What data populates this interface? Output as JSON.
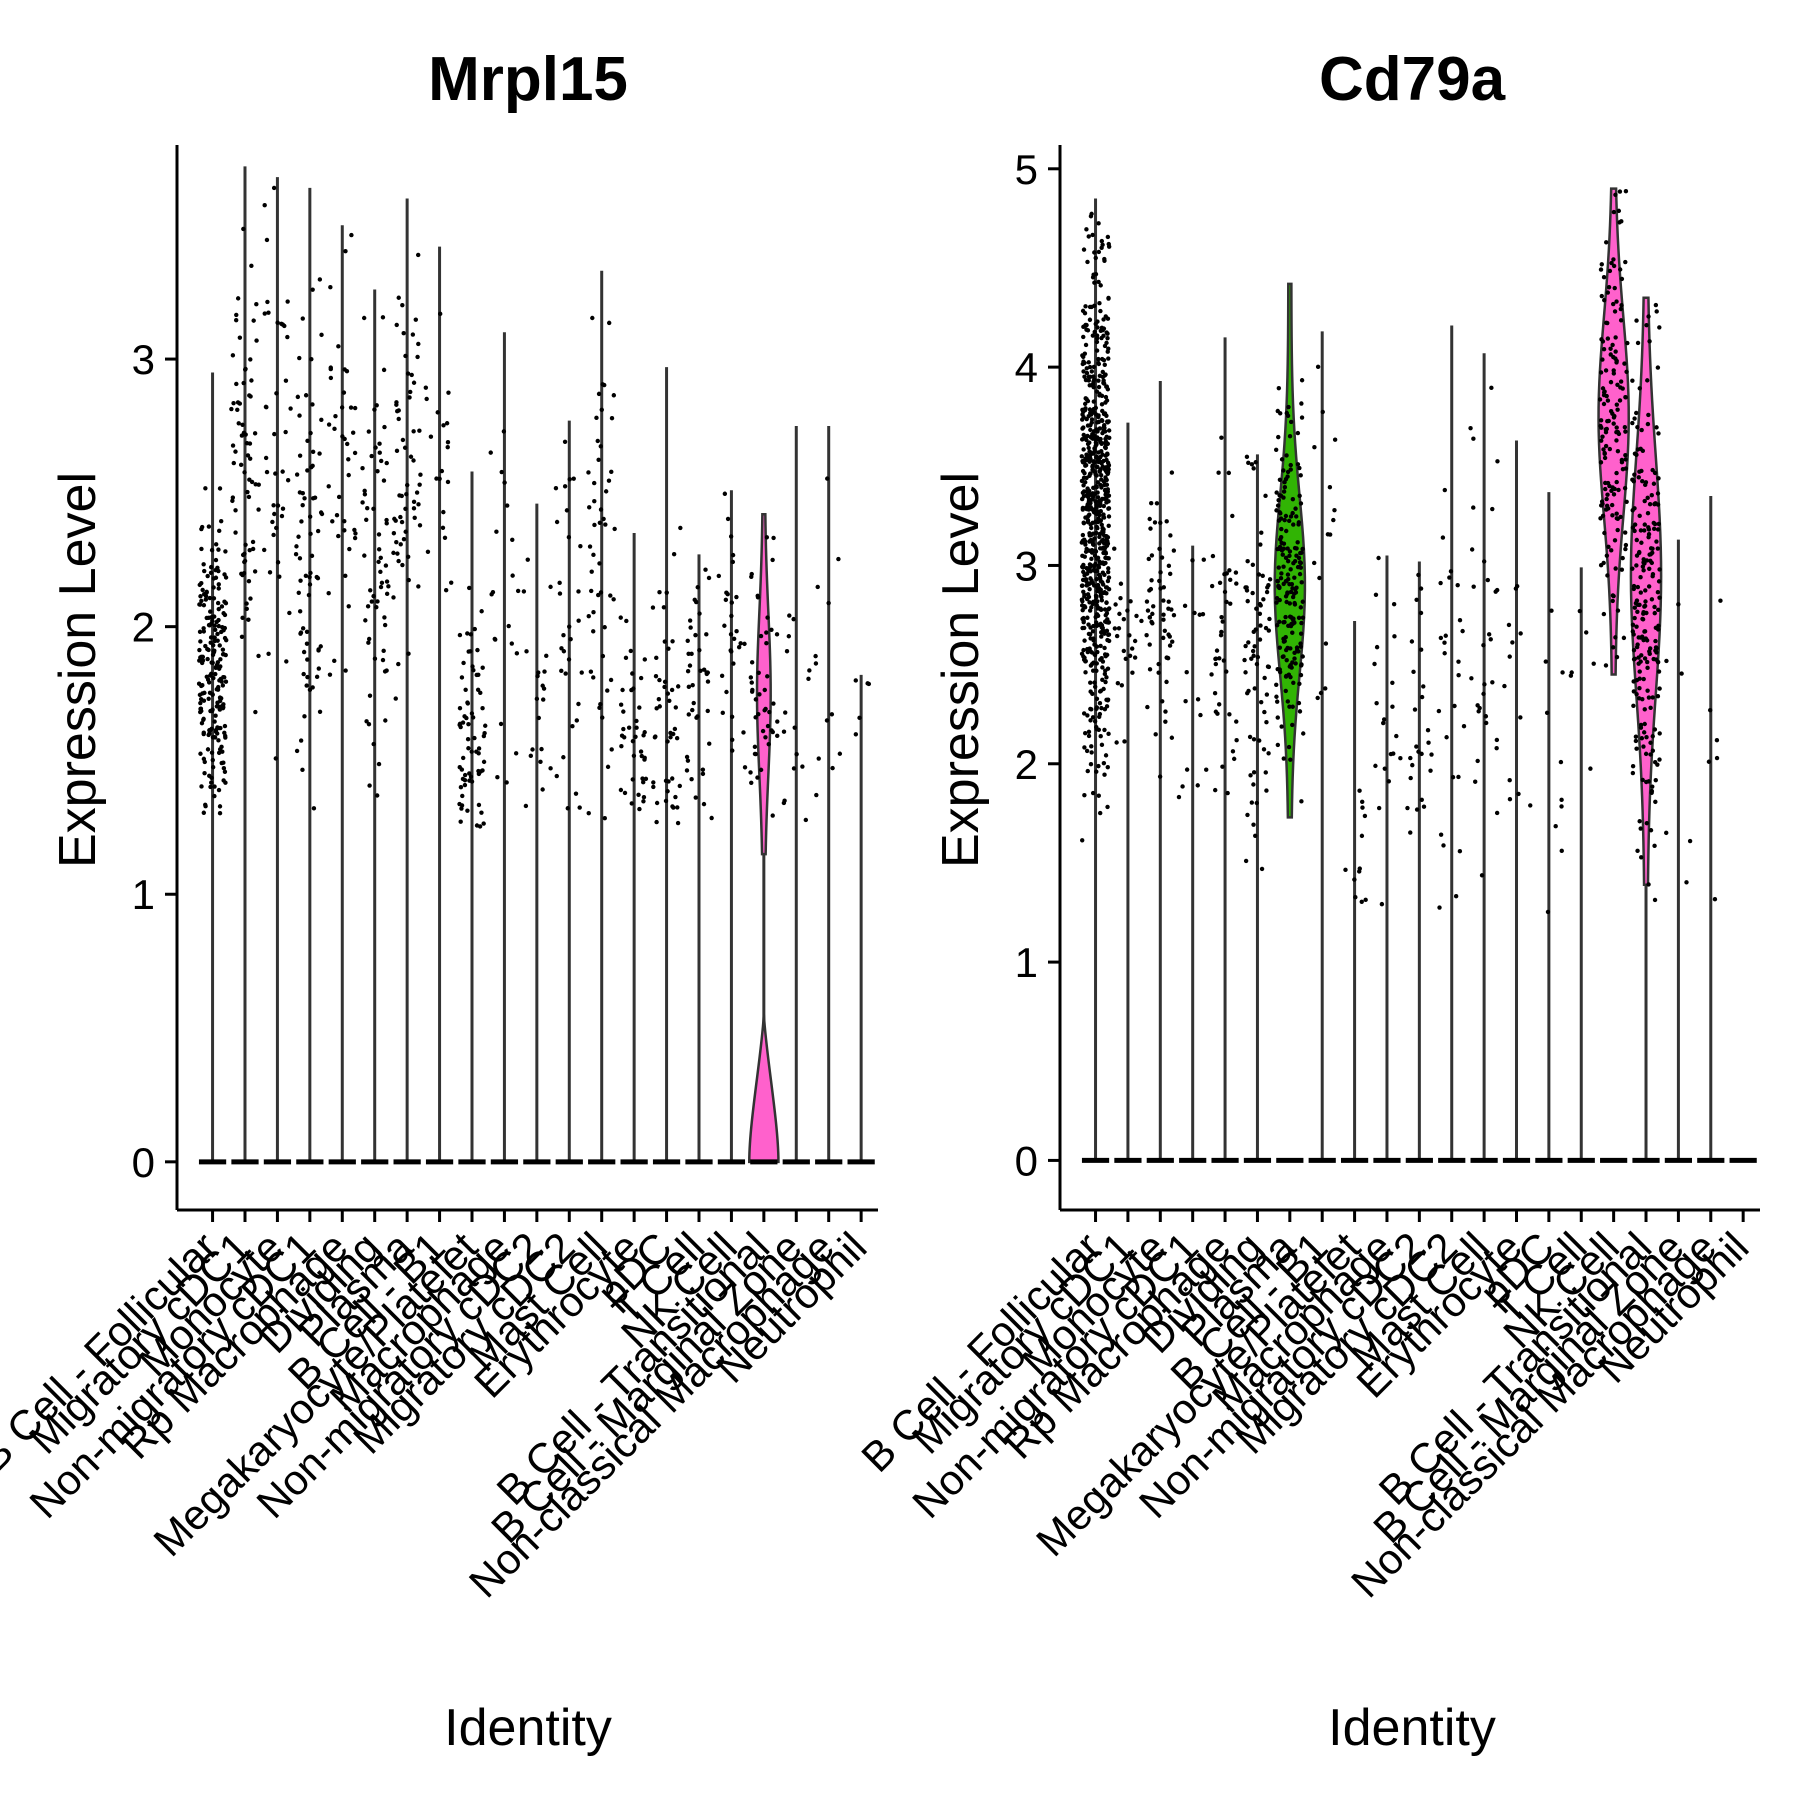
{
  "chart_data": [
    {
      "type": "violin",
      "title": "Mrpl15",
      "xlabel": "Identity",
      "ylabel": "Expression Level",
      "ylim": [
        -0.18,
        3.8
      ],
      "yticks": [
        0,
        1,
        2,
        3
      ],
      "categories": [
        "B Cell - Follicular",
        "Migratory cDC1",
        "Monocyte",
        "Non-migratory cDC1",
        "Rp Macrophage",
        "Dividing",
        "Plasma",
        "B Cell - B1",
        "Megakaryocyte/Platelet",
        "Macrophage",
        "Non-migratory cDC2",
        "Migratory cDC2",
        "Mast Cell",
        "Erythrocyte",
        "pDC",
        "T Cell",
        "NK Cell",
        "B Cell - Transitional",
        "B Cell - Marginal Zone",
        "Non-classical Macrophage",
        "Neutrophil"
      ],
      "series": [
        {
          "category": "B Cell - Follicular",
          "max": 2.95,
          "n_points": 220,
          "nonzero_center": 1.85,
          "nonzero_spread": 0.28,
          "fill": "#000000"
        },
        {
          "category": "Migratory cDC1",
          "max": 3.72,
          "n_points": 70,
          "nonzero_center": 2.6,
          "nonzero_spread": 0.4,
          "fill": "#000000"
        },
        {
          "category": "Monocyte",
          "max": 3.68,
          "n_points": 40,
          "nonzero_center": 2.6,
          "nonzero_spread": 0.45,
          "fill": "#000000"
        },
        {
          "category": "Non-migratory cDC1",
          "max": 3.64,
          "n_points": 70,
          "nonzero_center": 2.3,
          "nonzero_spread": 0.45,
          "fill": "#000000"
        },
        {
          "category": "Rp Macrophage",
          "max": 3.5,
          "n_points": 40,
          "nonzero_center": 2.6,
          "nonzero_spread": 0.4,
          "fill": "#000000"
        },
        {
          "category": "Dividing",
          "max": 3.26,
          "n_points": 60,
          "nonzero_center": 2.3,
          "nonzero_spread": 0.5,
          "fill": "#000000"
        },
        {
          "category": "Plasma",
          "max": 3.6,
          "n_points": 60,
          "nonzero_center": 2.65,
          "nonzero_spread": 0.35,
          "fill": "#000000"
        },
        {
          "category": "B Cell - B1",
          "max": 3.42,
          "n_points": 20,
          "nonzero_center": 2.6,
          "nonzero_spread": 0.35,
          "fill": "#000000"
        },
        {
          "category": "Megakaryocyte/Platelet",
          "max": 2.58,
          "n_points": 70,
          "nonzero_center": 1.6,
          "nonzero_spread": 0.25,
          "fill": "#000000"
        },
        {
          "category": "Macrophage",
          "max": 3.1,
          "n_points": 20,
          "nonzero_center": 2.2,
          "nonzero_spread": 0.45,
          "fill": "#000000"
        },
        {
          "category": "Non-migratory cDC2",
          "max": 2.46,
          "n_points": 20,
          "nonzero_center": 1.7,
          "nonzero_spread": 0.3,
          "fill": "#000000"
        },
        {
          "category": "Migratory cDC2",
          "max": 2.77,
          "n_points": 30,
          "nonzero_center": 2.0,
          "nonzero_spread": 0.4,
          "fill": "#000000"
        },
        {
          "category": "Mast Cell",
          "max": 3.33,
          "n_points": 50,
          "nonzero_center": 2.2,
          "nonzero_spread": 0.45,
          "fill": "#000000"
        },
        {
          "category": "Erythrocyte",
          "max": 2.35,
          "n_points": 40,
          "nonzero_center": 1.55,
          "nonzero_spread": 0.25,
          "fill": "#000000"
        },
        {
          "category": "pDC",
          "max": 2.97,
          "n_points": 45,
          "nonzero_center": 1.65,
          "nonzero_spread": 0.3,
          "fill": "#000000"
        },
        {
          "category": "T Cell",
          "max": 2.27,
          "n_points": 40,
          "nonzero_center": 1.75,
          "nonzero_spread": 0.25,
          "fill": "#000000"
        },
        {
          "category": "NK Cell",
          "max": 2.51,
          "n_points": 30,
          "nonzero_center": 1.95,
          "nonzero_spread": 0.3,
          "fill": "#000000"
        },
        {
          "category": "B Cell - Transitional",
          "max": 2.42,
          "n_points": 45,
          "nonzero_center": 1.75,
          "nonzero_spread": 0.3,
          "fill": "#ff61cc"
        },
        {
          "category": "B Cell - Marginal Zone",
          "max": 2.75,
          "n_points": 15,
          "nonzero_center": 1.7,
          "nonzero_spread": 0.25,
          "fill": "#000000"
        },
        {
          "category": "Non-classical Macrophage",
          "max": 2.75,
          "n_points": 12,
          "nonzero_center": 1.9,
          "nonzero_spread": 0.35,
          "fill": "#000000"
        },
        {
          "category": "Neutrophil",
          "max": 1.82,
          "n_points": 5,
          "nonzero_center": 1.7,
          "nonzero_spread": 0.1,
          "fill": "#000000"
        }
      ]
    },
    {
      "type": "violin",
      "title": "Cd79a",
      "xlabel": "Identity",
      "ylabel": "Expression Level",
      "ylim": [
        -0.25,
        5.12
      ],
      "yticks": [
        0,
        1,
        2,
        3,
        4,
        5
      ],
      "categories": [
        "B Cell - Follicular",
        "Migratory cDC1",
        "Monocyte",
        "Non-migratory cDC1",
        "Rp Macrophage",
        "Dividing",
        "Plasma",
        "B Cell - B1",
        "Megakaryocyte/Platelet",
        "Macrophage",
        "Non-migratory cDC2",
        "Migratory cDC2",
        "Mast Cell",
        "Erythrocyte",
        "pDC",
        "T Cell",
        "NK Cell",
        "B Cell - Transitional",
        "B Cell - Marginal Zone",
        "Non-classical Macrophage",
        "Neutrophil"
      ],
      "series": [
        {
          "category": "B Cell - Follicular",
          "max": 4.85,
          "n_points": 700,
          "nonzero_center": 3.3,
          "nonzero_spread": 0.6,
          "fill": "#000000"
        },
        {
          "category": "Migratory cDC1",
          "max": 3.72,
          "n_points": 25,
          "nonzero_center": 2.7,
          "nonzero_spread": 0.3,
          "fill": "#000000"
        },
        {
          "category": "Monocyte",
          "max": 3.93,
          "n_points": 60,
          "nonzero_center": 2.7,
          "nonzero_spread": 0.4,
          "fill": "#000000"
        },
        {
          "category": "Non-migratory cDC1",
          "max": 3.1,
          "n_points": 15,
          "nonzero_center": 2.3,
          "nonzero_spread": 0.4,
          "fill": "#000000"
        },
        {
          "category": "Rp Macrophage",
          "max": 4.15,
          "n_points": 40,
          "nonzero_center": 2.7,
          "nonzero_spread": 0.4,
          "fill": "#000000"
        },
        {
          "category": "Dividing",
          "max": 3.56,
          "n_points": 70,
          "nonzero_center": 2.5,
          "nonzero_spread": 0.5,
          "fill": "#000000"
        },
        {
          "category": "Plasma",
          "max": 4.42,
          "n_points": 200,
          "nonzero_center": 2.9,
          "nonzero_spread": 0.45,
          "fill": "#31b404"
        },
        {
          "category": "B Cell - B1",
          "max": 4.18,
          "n_points": 15,
          "nonzero_center": 3.0,
          "nonzero_spread": 0.4,
          "fill": "#000000"
        },
        {
          "category": "Megakaryocyte/Platelet",
          "max": 2.72,
          "n_points": 12,
          "nonzero_center": 1.6,
          "nonzero_spread": 0.25,
          "fill": "#000000"
        },
        {
          "category": "Macrophage",
          "max": 3.05,
          "n_points": 20,
          "nonzero_center": 2.3,
          "nonzero_spread": 0.5,
          "fill": "#000000"
        },
        {
          "category": "Non-migratory cDC2",
          "max": 3.02,
          "n_points": 25,
          "nonzero_center": 2.1,
          "nonzero_spread": 0.5,
          "fill": "#000000"
        },
        {
          "category": "Migratory cDC2",
          "max": 4.21,
          "n_points": 25,
          "nonzero_center": 2.3,
          "nonzero_spread": 0.6,
          "fill": "#000000"
        },
        {
          "category": "Mast Cell",
          "max": 4.07,
          "n_points": 30,
          "nonzero_center": 2.6,
          "nonzero_spread": 0.6,
          "fill": "#000000"
        },
        {
          "category": "Erythrocyte",
          "max": 3.63,
          "n_points": 12,
          "nonzero_center": 2.3,
          "nonzero_spread": 0.6,
          "fill": "#000000"
        },
        {
          "category": "pDC",
          "max": 3.37,
          "n_points": 10,
          "nonzero_center": 2.2,
          "nonzero_spread": 0.5,
          "fill": "#000000"
        },
        {
          "category": "T Cell",
          "max": 2.99,
          "n_points": 6,
          "nonzero_center": 2.2,
          "nonzero_spread": 0.5,
          "fill": "#000000"
        },
        {
          "category": "NK Cell",
          "max": 4.9,
          "n_points": 160,
          "nonzero_center": 3.75,
          "nonzero_spread": 0.5,
          "fill": "#ff61cc"
        },
        {
          "category": "B Cell - Transitional",
          "max": 4.35,
          "n_points": 220,
          "nonzero_center": 2.95,
          "nonzero_spread": 0.6,
          "fill": "#ff61cc"
        },
        {
          "category": "B Cell - Marginal Zone",
          "max": 3.13,
          "n_points": 6,
          "nonzero_center": 2.0,
          "nonzero_spread": 0.5,
          "fill": "#000000"
        },
        {
          "category": "Non-classical Macrophage",
          "max": 3.35,
          "n_points": 6,
          "nonzero_center": 2.3,
          "nonzero_spread": 0.5,
          "fill": "#000000"
        },
        {
          "category": "Neutrophil",
          "max": 0.0,
          "n_points": 0,
          "nonzero_center": 0,
          "nonzero_spread": 0,
          "fill": "#000000"
        }
      ]
    }
  ]
}
